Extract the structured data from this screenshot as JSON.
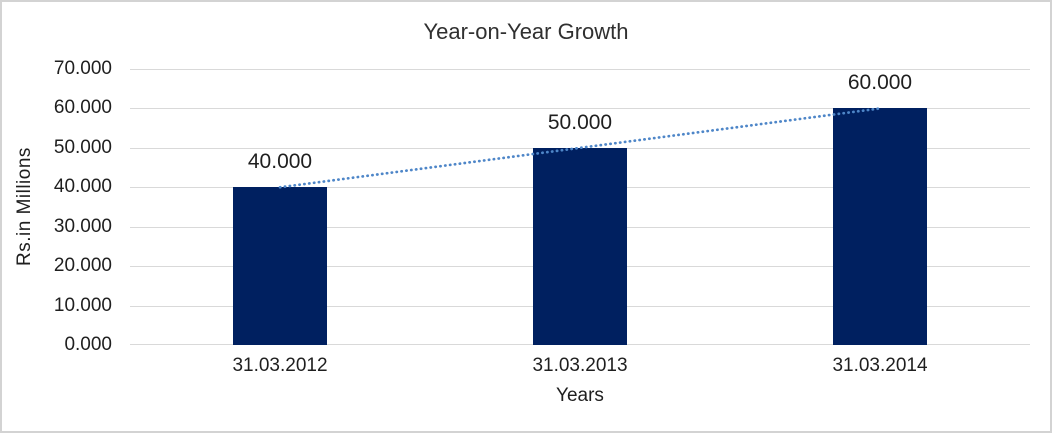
{
  "chart_data": {
    "type": "bar",
    "title": "Year-on-Year Growth",
    "categories": [
      "31.03.2012",
      "31.03.2013",
      "31.03.2014"
    ],
    "values": [
      40000,
      50000,
      60000
    ],
    "data_labels": [
      "40.000",
      "50.000",
      "60.000"
    ],
    "xlabel": "Years",
    "ylabel": "Rs.in Millions",
    "y_ticks": [
      "70.000",
      "60.000",
      "50.000",
      "40.000",
      "30.000",
      "20.000",
      "10.000",
      "0.000"
    ],
    "ylim": [
      0,
      70000
    ],
    "y_tick_interval": 10000,
    "grid": true,
    "legend": false,
    "trendline": {
      "type": "linear",
      "style": "dotted",
      "spans": "first-to-last-bar"
    }
  },
  "colors": {
    "bar": "#002060",
    "trendline": "#4E86C8",
    "gridline": "#D9D9D9",
    "axis_line": "#D9D9D9",
    "text": "#1F1F1F",
    "title_text": "#303030",
    "background": "#FFFFFF",
    "chart_border": "#D3D3D3"
  }
}
